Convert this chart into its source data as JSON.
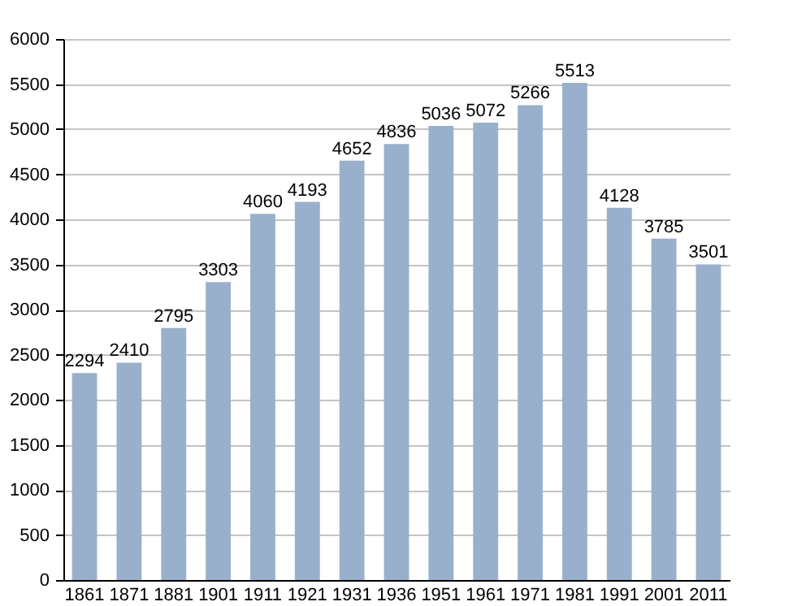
{
  "chart_data": {
    "type": "bar",
    "categories": [
      "1861",
      "1871",
      "1881",
      "1901",
      "1911",
      "1921",
      "1931",
      "1936",
      "1951",
      "1961",
      "1971",
      "1981",
      "1991",
      "2001",
      "2011"
    ],
    "values": [
      2294,
      2410,
      2795,
      3303,
      4060,
      4193,
      4652,
      4836,
      5036,
      5072,
      5266,
      5513,
      4128,
      3785,
      3501
    ],
    "color": "#99b0cc",
    "data_labels": true,
    "grid": "y",
    "ylim": [
      0,
      6000
    ],
    "yticks": [
      0,
      500,
      1000,
      1500,
      2000,
      2500,
      3000,
      3500,
      4000,
      4500,
      5000,
      5500,
      6000
    ]
  }
}
